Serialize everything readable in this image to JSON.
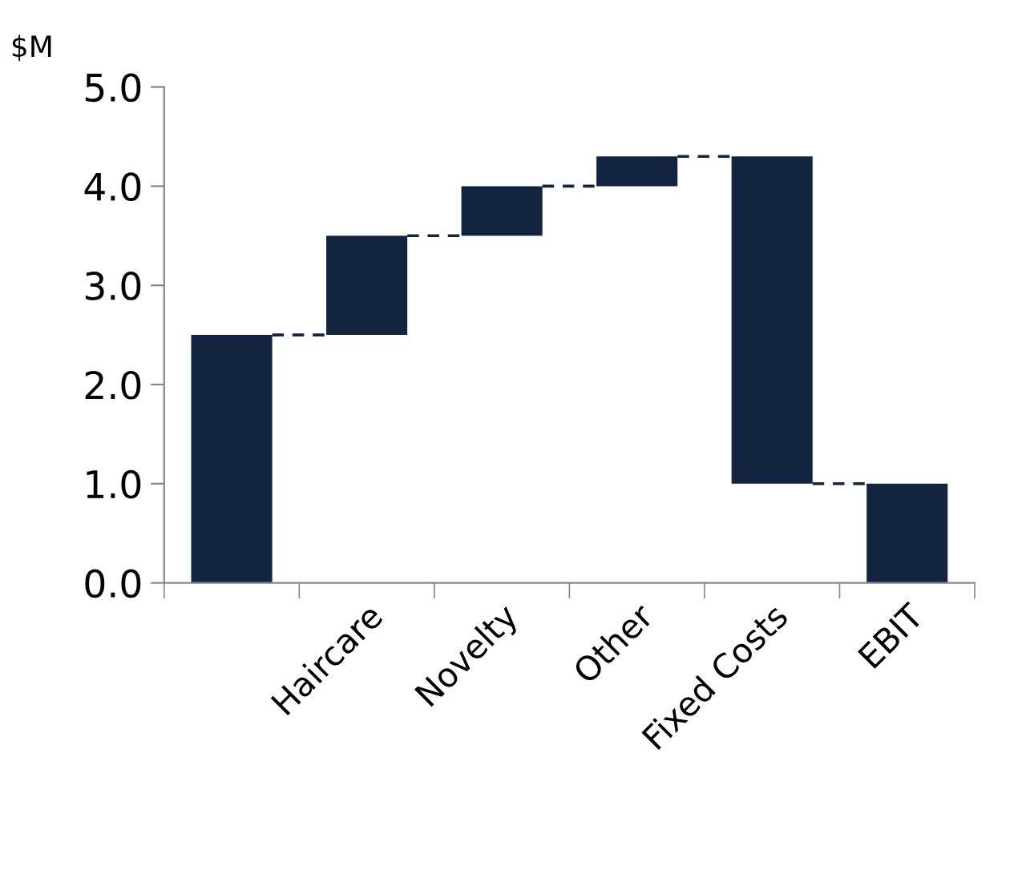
{
  "chart_data": {
    "type": "bar",
    "ylabel": "$M",
    "categories": [
      null,
      "Haircare",
      "Novelty",
      "Other",
      "Fixed Costs",
      "EBIT"
    ],
    "values": [
      2.5,
      1.0,
      0.5,
      0.3,
      -3.3,
      1.0
    ],
    "base": [
      0,
      2.5,
      3.5,
      4.0,
      4.3,
      0
    ],
    "color": "#12243f",
    "line_style": "dashed",
    "ylim": [
      0,
      5
    ],
    "yticks": [
      {
        "value": 0,
        "label": "0.0"
      },
      {
        "value": 1,
        "label": "1.0"
      },
      {
        "value": 2,
        "label": "2.0"
      },
      {
        "value": 3,
        "label": "3.0"
      },
      {
        "value": 4,
        "label": "4.0"
      },
      {
        "value": 5,
        "label": "5.0"
      }
    ],
    "grid": false,
    "legend": false
  }
}
